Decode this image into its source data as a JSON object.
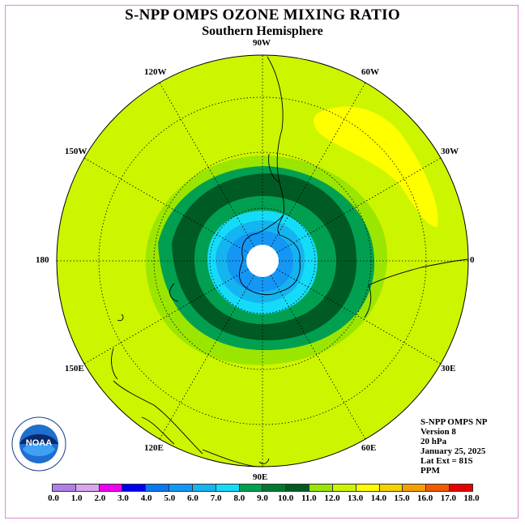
{
  "title": "S-NPP OMPS OZONE MIXING RATIO",
  "subtitle": "Southern Hemisphere",
  "map": {
    "projection": "south polar stereographic",
    "longitude_labels": [
      "90W",
      "60W",
      "30W",
      "0",
      "30E",
      "60E",
      "90E",
      "120E",
      "150E",
      "180",
      "150W",
      "120W"
    ],
    "background_color": "#ccf500",
    "features": [
      "coastlines",
      "graticule",
      "polar-vortex-ozone-hole",
      "ozone-maximum"
    ]
  },
  "info": {
    "instrument": "S-NPP OMPS NP",
    "version": "Version 8",
    "level": "20 hPa",
    "date": "January 25, 2025",
    "lat_ext": "Lat Ext = 81S",
    "units": "PPM"
  },
  "colorbar": {
    "ticks": [
      "0.0",
      "1.0",
      "2.0",
      "3.0",
      "4.0",
      "5.0",
      "6.0",
      "7.0",
      "8.0",
      "9.0",
      "10.0",
      "11.0",
      "12.0",
      "13.0",
      "14.0",
      "15.0",
      "16.0",
      "17.0",
      "18.0"
    ],
    "colors": [
      "#b07fe8",
      "#d9a6ee",
      "#f000f0",
      "#0000f0",
      "#0a78f0",
      "#1496f5",
      "#14b4f0",
      "#14dcf8",
      "#00a050",
      "#007830",
      "#005a23",
      "#9be600",
      "#ccf500",
      "#ffff00",
      "#f5d200",
      "#f5a000",
      "#f05a00",
      "#e60000",
      "#82503c"
    ]
  },
  "logo": {
    "text": "NOAA",
    "ring_text": "NATIONAL OCEANIC AND ATMOSPHERIC ADMINISTRATION · U.S. DEPARTMENT OF COMMERCE"
  }
}
